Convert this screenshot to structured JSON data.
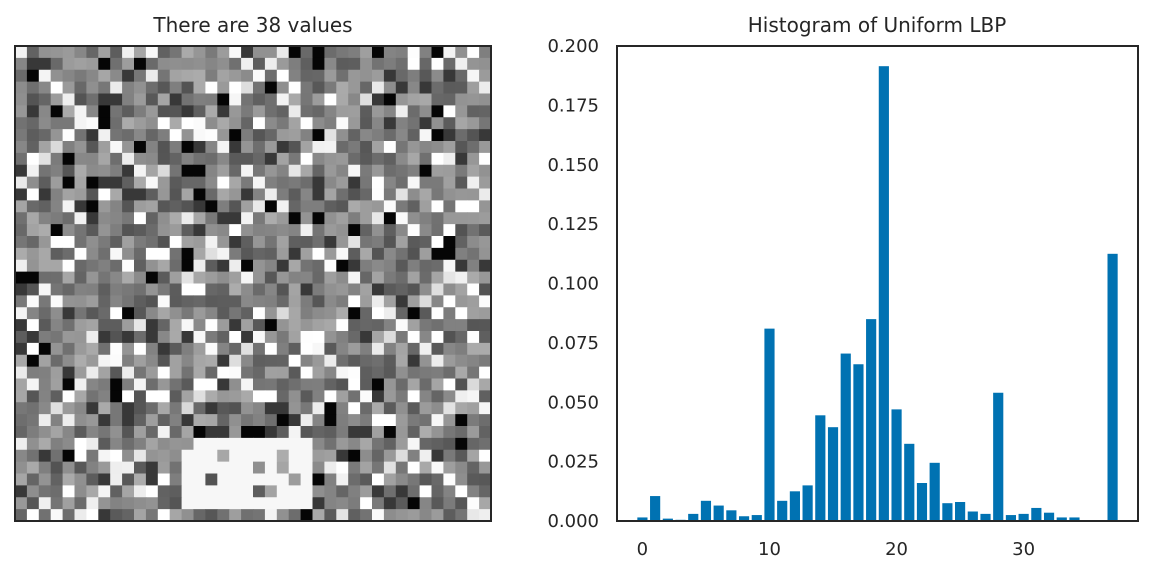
{
  "chart_data": [
    {
      "type": "heatmap",
      "title": "There are 38 values",
      "colormap": "gray",
      "grid_size": [
        40,
        40
      ],
      "value_range": [
        0,
        37
      ],
      "xticks": [],
      "yticks": []
    },
    {
      "type": "bar",
      "title": "Histogram of Uniform LBP",
      "xlabel": "",
      "ylabel": "",
      "x": [
        0,
        1,
        2,
        3,
        4,
        5,
        6,
        7,
        8,
        9,
        10,
        11,
        12,
        13,
        14,
        15,
        16,
        17,
        18,
        19,
        20,
        21,
        22,
        23,
        24,
        25,
        26,
        27,
        28,
        29,
        30,
        31,
        32,
        33,
        34,
        35,
        36,
        37
      ],
      "values": [
        0.0015,
        0.0105,
        0.001,
        0.0005,
        0.003,
        0.0085,
        0.0065,
        0.0045,
        0.002,
        0.0025,
        0.081,
        0.0085,
        0.0125,
        0.015,
        0.0445,
        0.0395,
        0.0705,
        0.066,
        0.085,
        0.1915,
        0.047,
        0.0325,
        0.016,
        0.0245,
        0.0075,
        0.008,
        0.004,
        0.003,
        0.054,
        0.0025,
        0.003,
        0.0055,
        0.0035,
        0.0015,
        0.0015,
        0.0,
        0.0,
        0.1125
      ],
      "xlim": [
        -2,
        39
      ],
      "ylim": [
        0,
        0.2
      ],
      "xticks": [
        0,
        10,
        20,
        30
      ],
      "yticks": [
        "0.000",
        "0.025",
        "0.050",
        "0.075",
        "0.100",
        "0.125",
        "0.150",
        "0.175",
        "0.200"
      ],
      "bar_color": "#0072b2",
      "grid": false
    }
  ]
}
